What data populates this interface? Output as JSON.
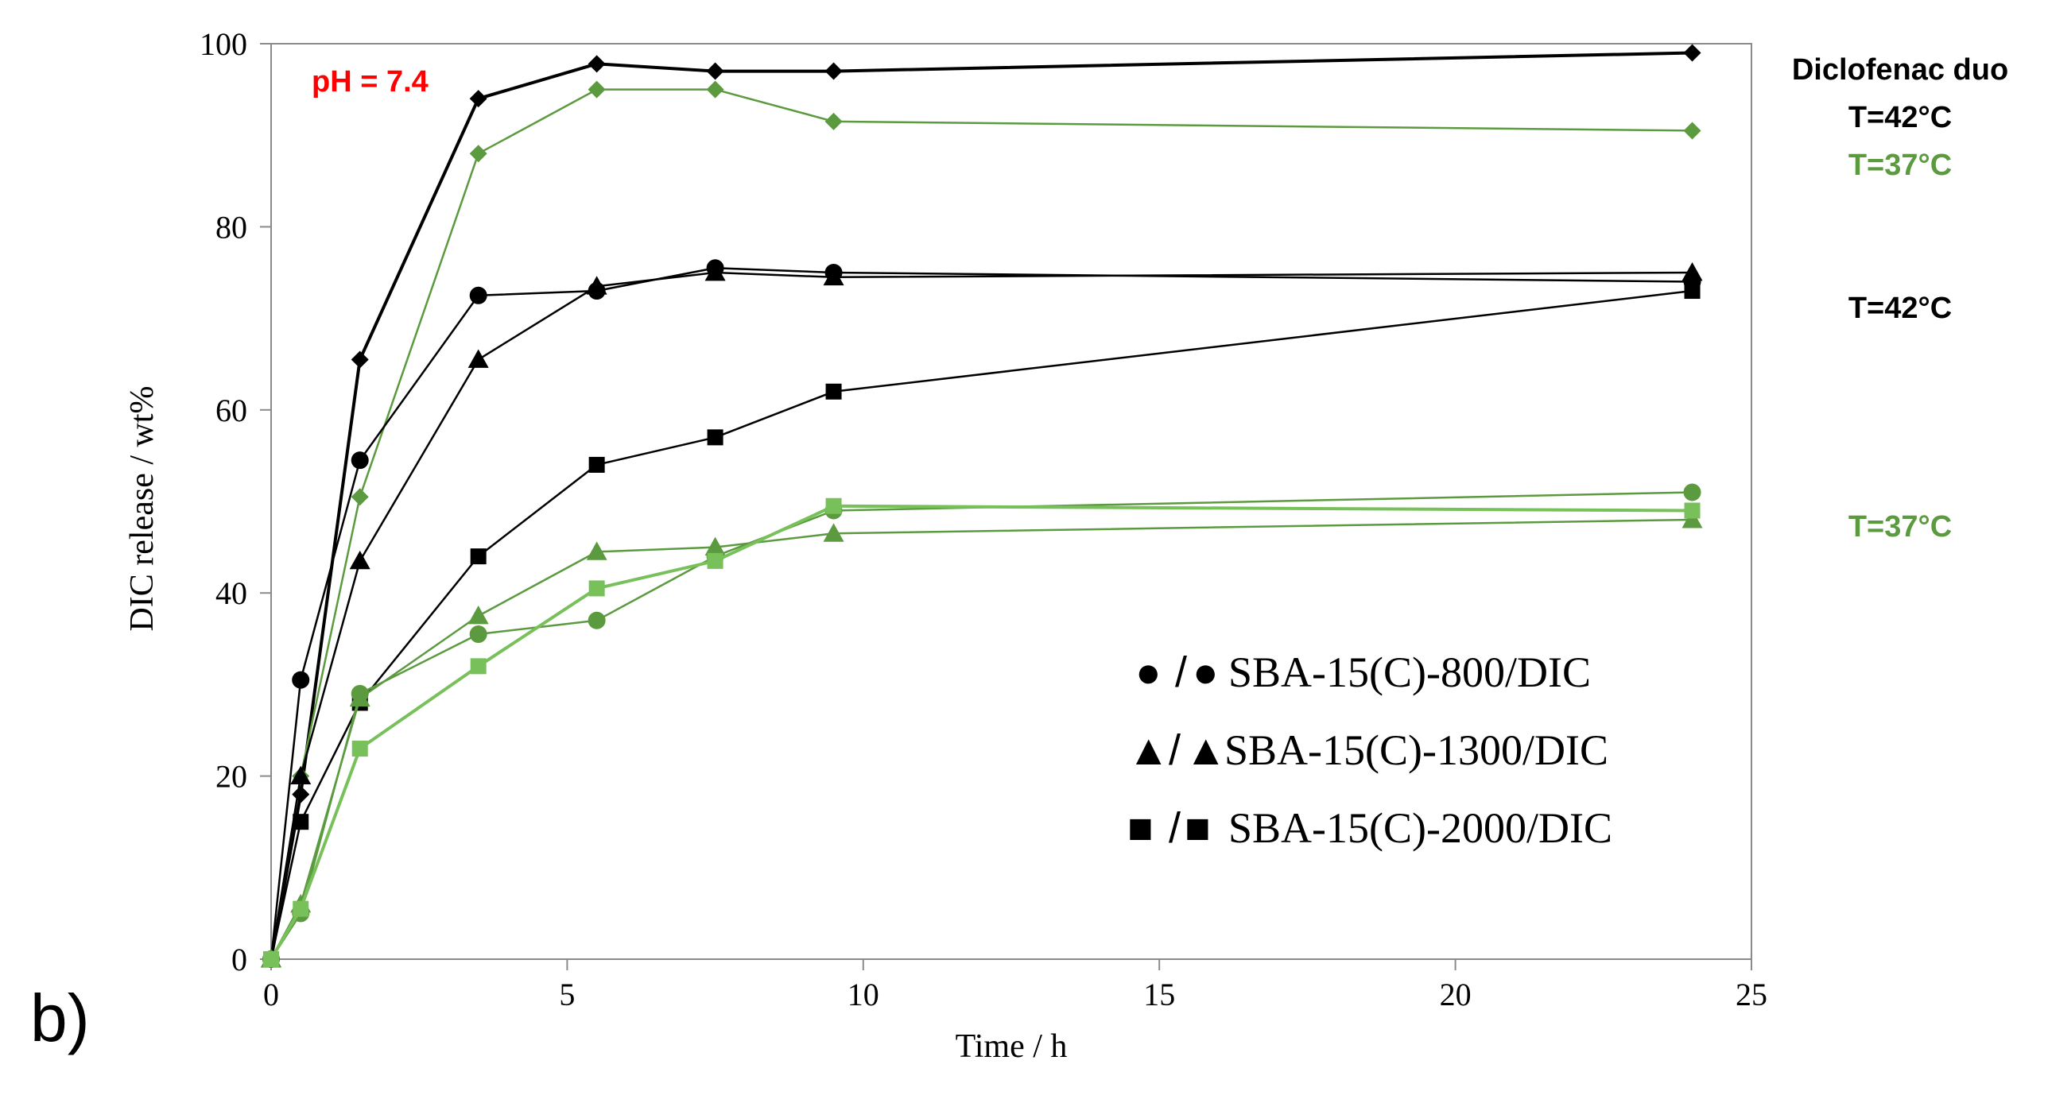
{
  "chart_data": {
    "type": "line",
    "panel_label": "b)",
    "title": "",
    "xlabel": "Time / h",
    "ylabel": "DIC release / wt%",
    "xlim": [
      0,
      25
    ],
    "ylim": [
      0,
      100
    ],
    "xticks": [
      0,
      5,
      10,
      15,
      20,
      25
    ],
    "yticks": [
      0,
      20,
      40,
      60,
      80,
      100
    ],
    "grid": false,
    "colors": {
      "black": "#000000",
      "green": "#5b9a3f",
      "light_green": "#78c05a",
      "red": "#ff0000"
    },
    "annotations": {
      "ph": "pH = 7.4",
      "diclofenac_title": "Diclofenac duo",
      "diclofenac_t42": "T=42°C",
      "diclofenac_t37": "T=37°C",
      "group_t42": "T=42°C",
      "group_t37": "T=37°C"
    },
    "legend": {
      "position": "lower-right",
      "entries": [
        {
          "black_marker": "●",
          "sep": "/",
          "green_marker": "●",
          "label": "SBA-15(C)-800/DIC"
        },
        {
          "black_marker": "▲",
          "sep": "/",
          "green_marker": "▲",
          "label": "SBA-15(C)-1300/DIC"
        },
        {
          "black_marker": "■",
          "sep": "/",
          "green_marker": "■",
          "label": "SBA-15(C)-2000/DIC"
        }
      ]
    },
    "x": [
      0,
      0.5,
      1.5,
      3.5,
      5.5,
      7.5,
      9.5,
      24
    ],
    "series": [
      {
        "name": "Diclofenac duo T=42°C",
        "color": "#000000",
        "marker": "diamond",
        "lineWidth": 4,
        "values": [
          0,
          18,
          65.5,
          94,
          97.8,
          97,
          97,
          99
        ]
      },
      {
        "name": "Diclofenac duo T=37°C",
        "color": "#5b9a3f",
        "marker": "diamond",
        "lineWidth": 2.5,
        "values": [
          0,
          20,
          50.5,
          88,
          95,
          95,
          91.5,
          90.5
        ]
      },
      {
        "name": "SBA-15(C)-800/DIC T=42°C",
        "color": "#000000",
        "marker": "circle",
        "lineWidth": 2.5,
        "values": [
          0,
          30.5,
          54.5,
          72.5,
          73,
          75.5,
          75,
          74
        ]
      },
      {
        "name": "SBA-15(C)-1300/DIC T=42°C",
        "color": "#000000",
        "marker": "triangle",
        "lineWidth": 2.5,
        "values": [
          0,
          20,
          43.5,
          65.5,
          73.5,
          75,
          74.5,
          75
        ]
      },
      {
        "name": "SBA-15(C)-2000/DIC T=42°C",
        "color": "#000000",
        "marker": "square",
        "lineWidth": 2.5,
        "values": [
          0,
          15,
          28,
          44,
          54,
          57,
          62,
          73
        ]
      },
      {
        "name": "SBA-15(C)-800/DIC T=37°C",
        "color": "#5b9a3f",
        "marker": "circle",
        "lineWidth": 2.5,
        "values": [
          0,
          5,
          29,
          35.5,
          37,
          44,
          49,
          51
        ]
      },
      {
        "name": "SBA-15(C)-1300/DIC T=37°C",
        "color": "#5b9a3f",
        "marker": "triangle",
        "lineWidth": 2.5,
        "values": [
          0,
          6,
          28.5,
          37.5,
          44.5,
          45,
          46.5,
          48
        ]
      },
      {
        "name": "SBA-15(C)-2000/DIC T=37°C",
        "color": "#78c05a",
        "marker": "square",
        "lineWidth": 4,
        "values": [
          0,
          5.5,
          23,
          32,
          40.5,
          43.5,
          49.5,
          49
        ]
      }
    ]
  }
}
